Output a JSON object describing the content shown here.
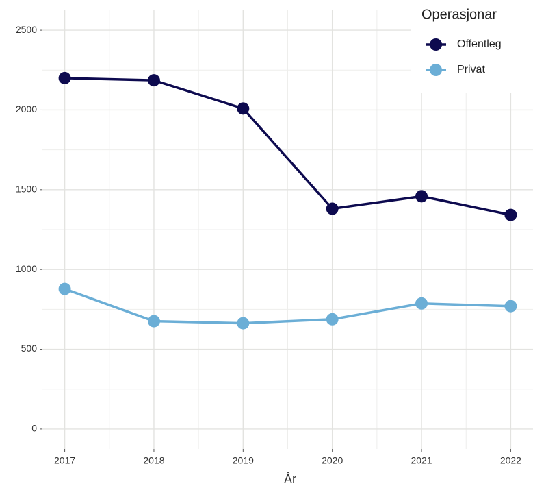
{
  "chart_data": {
    "type": "line",
    "x": [
      2017,
      2018,
      2019,
      2020,
      2021,
      2022
    ],
    "xlim": [
      2016.75,
      2022.25
    ],
    "xticks": [
      2017,
      2018,
      2019,
      2020,
      2021,
      2022
    ],
    "ylim": [
      -125,
      2625
    ],
    "yticks": [
      0,
      500,
      1000,
      1500,
      2000,
      2500
    ],
    "x_label": "År",
    "legend_title": "Operasjonar",
    "legend_position": "top-right",
    "grid": true,
    "series": [
      {
        "name": "Offentleg",
        "color": "#0d0a4f",
        "values": [
          2200,
          2186,
          2009,
          1381,
          1459,
          1342
        ]
      },
      {
        "name": "Privat",
        "color": "#6baed6",
        "values": [
          878,
          676,
          663,
          688,
          787,
          770
        ]
      }
    ]
  }
}
